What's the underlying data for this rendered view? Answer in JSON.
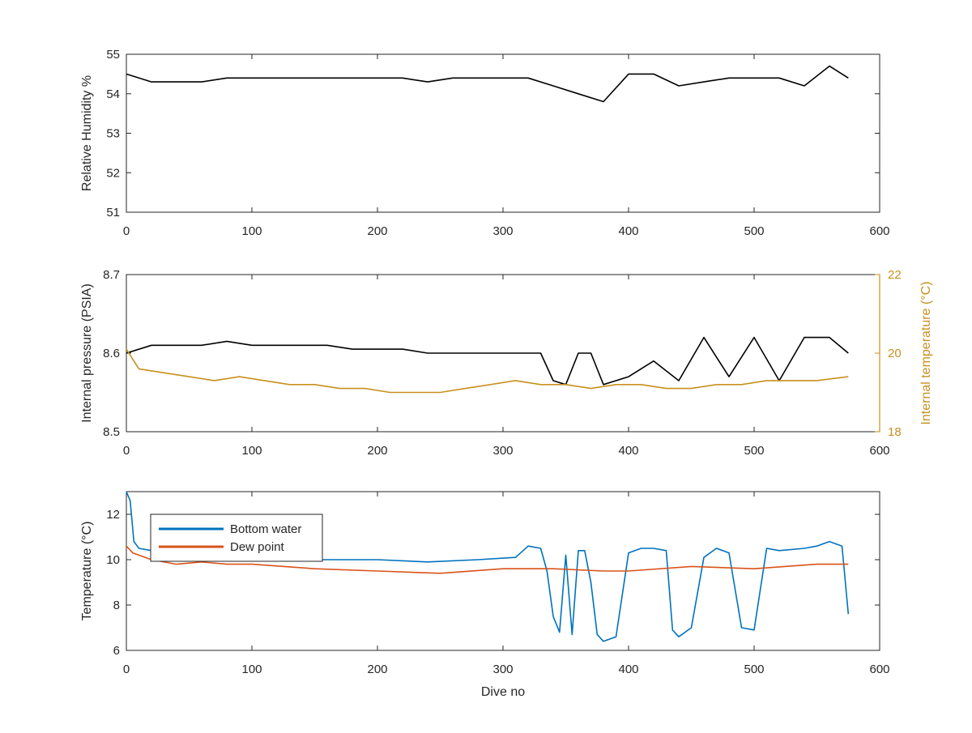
{
  "colors": {
    "black": "#000000",
    "blue": "#0072BD",
    "orange": "#D95319",
    "gold": "#C8901E",
    "axis": "#262626"
  },
  "chart_data": [
    {
      "type": "line",
      "title": "",
      "xlabel": "",
      "ylabel": "Relative Humidity %",
      "xlim": [
        0,
        600
      ],
      "ylim": [
        51,
        55
      ],
      "xticks": [
        "0",
        "100",
        "200",
        "300",
        "400",
        "500",
        "600"
      ],
      "yticks": [
        "51",
        "52",
        "53",
        "54",
        "55"
      ],
      "series": [
        {
          "color": "#000000",
          "x": [
            0,
            20,
            40,
            60,
            80,
            100,
            120,
            140,
            160,
            180,
            200,
            220,
            240,
            260,
            280,
            300,
            320,
            340,
            360,
            380,
            400,
            420,
            440,
            460,
            480,
            500,
            520,
            540,
            560,
            575
          ],
          "y": [
            54.5,
            54.3,
            54.3,
            54.3,
            54.4,
            54.4,
            54.4,
            54.4,
            54.4,
            54.4,
            54.4,
            54.4,
            54.3,
            54.4,
            54.4,
            54.4,
            54.4,
            54.2,
            54.0,
            53.8,
            54.5,
            54.5,
            54.2,
            54.3,
            54.4,
            54.4,
            54.4,
            54.2,
            54.7,
            54.4
          ]
        }
      ]
    },
    {
      "type": "line",
      "title": "",
      "xlabel": "",
      "ylabel": "Internal pressure (PSIA)",
      "ylabel_right": "Internal temperature (°C)",
      "xlim": [
        0,
        600
      ],
      "ylim": [
        8.5,
        8.7
      ],
      "ylim_right": [
        18,
        22
      ],
      "xticks": [
        "0",
        "100",
        "200",
        "300",
        "400",
        "500",
        "600"
      ],
      "yticks": [
        "8.5",
        "8.6",
        "8.7"
      ],
      "yticks_right": [
        "18",
        "20",
        "22"
      ],
      "series": [
        {
          "axis": "left",
          "color": "#000000",
          "x": [
            0,
            20,
            40,
            60,
            80,
            100,
            120,
            140,
            160,
            180,
            200,
            220,
            240,
            260,
            280,
            300,
            320,
            330,
            340,
            350,
            360,
            370,
            380,
            400,
            420,
            440,
            460,
            480,
            500,
            520,
            540,
            560,
            575
          ],
          "y": [
            8.6,
            8.61,
            8.61,
            8.61,
            8.615,
            8.61,
            8.61,
            8.61,
            8.61,
            8.605,
            8.605,
            8.605,
            8.6,
            8.6,
            8.6,
            8.6,
            8.6,
            8.6,
            8.565,
            8.56,
            8.6,
            8.6,
            8.56,
            8.57,
            8.59,
            8.565,
            8.62,
            8.57,
            8.62,
            8.565,
            8.62,
            8.62,
            8.6
          ]
        },
        {
          "axis": "right",
          "color": "#C8901E",
          "x": [
            0,
            10,
            30,
            50,
            70,
            90,
            110,
            130,
            150,
            170,
            190,
            210,
            230,
            250,
            270,
            290,
            310,
            330,
            350,
            370,
            390,
            410,
            430,
            450,
            470,
            490,
            510,
            530,
            550,
            575
          ],
          "y": [
            20.1,
            19.6,
            19.5,
            19.4,
            19.3,
            19.4,
            19.3,
            19.2,
            19.2,
            19.1,
            19.1,
            19.0,
            19.0,
            19.0,
            19.1,
            19.2,
            19.3,
            19.2,
            19.2,
            19.1,
            19.2,
            19.2,
            19.1,
            19.1,
            19.2,
            19.2,
            19.3,
            19.3,
            19.3,
            19.4
          ]
        }
      ]
    },
    {
      "type": "line",
      "title": "",
      "xlabel": "Dive no",
      "ylabel": "Temperature (°C)",
      "xlim": [
        0,
        600
      ],
      "ylim": [
        6,
        13
      ],
      "xticks": [
        "0",
        "100",
        "200",
        "300",
        "400",
        "500",
        "600"
      ],
      "yticks": [
        "6",
        "8",
        "10",
        "12"
      ],
      "legend": "top-left",
      "series": [
        {
          "name": "Bottom water",
          "color": "#0072BD",
          "x": [
            0,
            3,
            6,
            10,
            20,
            40,
            60,
            100,
            150,
            200,
            240,
            280,
            310,
            320,
            330,
            335,
            340,
            345,
            350,
            355,
            360,
            365,
            370,
            375,
            380,
            390,
            400,
            410,
            420,
            430,
            435,
            440,
            450,
            460,
            470,
            480,
            490,
            500,
            510,
            520,
            540,
            550,
            560,
            570,
            575
          ],
          "y": [
            13.0,
            12.6,
            10.8,
            10.5,
            10.4,
            10.3,
            10.2,
            10.1,
            10.0,
            10.0,
            9.9,
            10.0,
            10.1,
            10.6,
            10.5,
            9.5,
            7.5,
            6.8,
            10.2,
            6.7,
            10.4,
            10.4,
            9.0,
            6.7,
            6.4,
            6.6,
            10.3,
            10.5,
            10.5,
            10.4,
            6.9,
            6.6,
            7.0,
            10.1,
            10.5,
            10.3,
            7.0,
            6.9,
            10.5,
            10.4,
            10.5,
            10.6,
            10.8,
            10.6,
            7.6
          ]
        },
        {
          "name": "Dew point",
          "color": "#D95319",
          "x": [
            0,
            5,
            10,
            20,
            40,
            60,
            80,
            100,
            150,
            200,
            250,
            300,
            340,
            380,
            400,
            450,
            500,
            550,
            575
          ],
          "y": [
            10.6,
            10.3,
            10.2,
            10.0,
            9.8,
            9.9,
            9.8,
            9.8,
            9.6,
            9.5,
            9.4,
            9.6,
            9.6,
            9.5,
            9.5,
            9.7,
            9.6,
            9.8,
            9.8
          ]
        }
      ]
    }
  ]
}
